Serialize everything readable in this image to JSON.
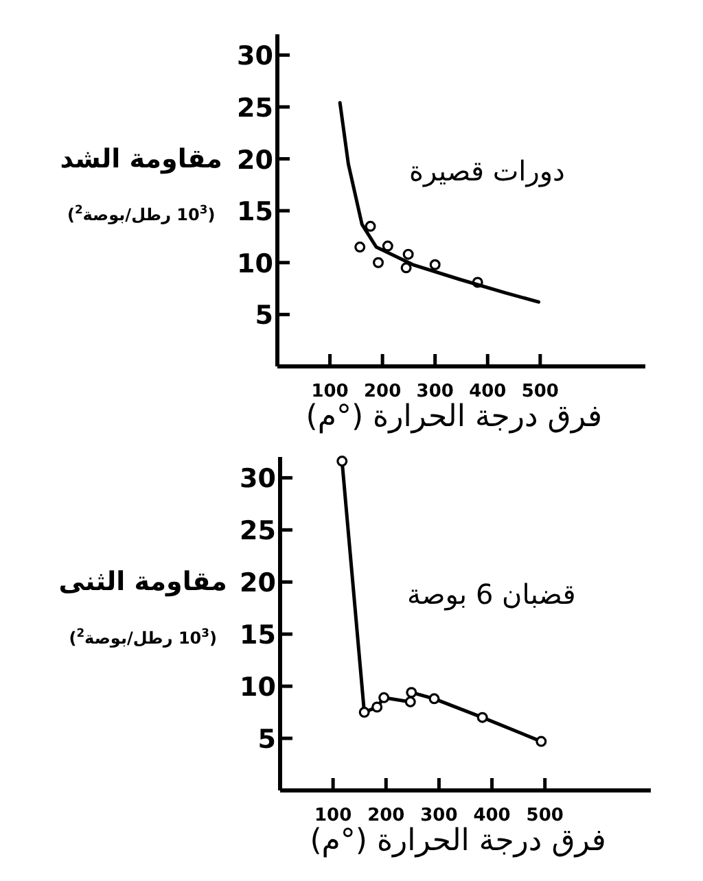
{
  "chart_data": [
    {
      "type": "scatter",
      "title": "دورات قصيرة",
      "xlabel": "فرق درجة الحرارة (°م)",
      "ylabel": "مقاومة الشد",
      "annotations": [
        "(10$^{3}$ رطل/بوصة$^{2}$)"
      ],
      "xlim": [
        0,
        700
      ],
      "ylim": [
        0,
        32
      ],
      "xticks": [
        100,
        200,
        300,
        400,
        500
      ],
      "yticks": [
        5,
        10,
        15,
        20,
        25,
        30
      ],
      "series": [
        {
          "marker": "circle",
          "color": "#000000",
          "x": [
            157,
            177,
            192,
            210,
            245,
            249,
            300,
            381
          ],
          "values": [
            11.5,
            13.5,
            10.0,
            11.6,
            9.5,
            10.8,
            9.8,
            8.1
          ]
        },
        {
          "type": "line",
          "marker": "none",
          "color": "#000000",
          "x": [
            119,
            135,
            161,
            188,
            258,
            346,
            433,
            497
          ],
          "values": [
            25.4,
            19.5,
            13.7,
            11.5,
            9.8,
            8.4,
            7.1,
            6.2
          ]
        }
      ]
    },
    {
      "type": "line",
      "title": "قضبان 6 بوصة",
      "xlabel": "فرق درجة الحرارة (°م)",
      "ylabel": "مقاومة الثنى",
      "annotations": [
        "(10$^{3}$ رطل/بوصة$^{2}$)"
      ],
      "xlim": [
        0,
        700
      ],
      "ylim": [
        0,
        32
      ],
      "xticks": [
        100,
        200,
        300,
        400,
        500
      ],
      "yticks": [
        5,
        10,
        15,
        20,
        25,
        30
      ],
      "marker": "circle",
      "series": [
        {
          "color": "#000000",
          "x": [
            117,
            159,
            183,
            196,
            246,
            248,
            291,
            382,
            493
          ],
          "values": [
            31.6,
            7.5,
            8.0,
            8.9,
            8.5,
            9.4,
            8.8,
            7.0,
            4.7
          ]
        }
      ]
    }
  ]
}
